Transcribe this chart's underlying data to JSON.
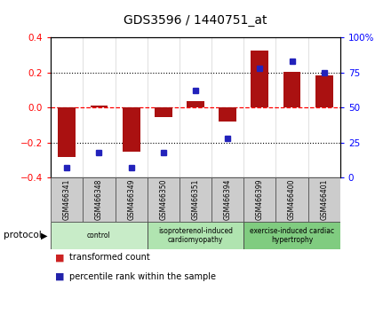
{
  "title": "GDS3596 / 1440751_at",
  "samples": [
    "GSM466341",
    "GSM466348",
    "GSM466349",
    "GSM466350",
    "GSM466351",
    "GSM466394",
    "GSM466399",
    "GSM466400",
    "GSM466401"
  ],
  "transformed_count": [
    -0.285,
    0.01,
    -0.255,
    -0.055,
    0.035,
    -0.08,
    0.325,
    0.205,
    0.185
  ],
  "percentile_rank": [
    7,
    18,
    7,
    18,
    62,
    28,
    78,
    83,
    75
  ],
  "groups": [
    {
      "label": "control",
      "start": 0,
      "end": 3,
      "color": "#c8ecc8"
    },
    {
      "label": "isoproterenol-induced\ncardiomyopathy",
      "start": 3,
      "end": 6,
      "color": "#b0e4b0"
    },
    {
      "label": "exercise-induced cardiac\nhypertrophy",
      "start": 6,
      "end": 9,
      "color": "#80cc80"
    }
  ],
  "bar_color": "#aa1111",
  "dot_color": "#2222bb",
  "ylim": [
    -0.4,
    0.4
  ],
  "y2lim": [
    0,
    100
  ],
  "yticks": [
    -0.4,
    -0.2,
    0.0,
    0.2,
    0.4
  ],
  "y2ticks": [
    0,
    25,
    50,
    75,
    100
  ],
  "y2ticklabels": [
    "0",
    "25",
    "50",
    "75",
    "100%"
  ],
  "hlines": [
    -0.2,
    0.2
  ],
  "bg_color": "#ffffff",
  "protocol_label": "protocol",
  "legend_items": [
    {
      "label": "transformed count",
      "color": "#cc2222"
    },
    {
      "label": "percentile rank within the sample",
      "color": "#2222aa"
    }
  ]
}
